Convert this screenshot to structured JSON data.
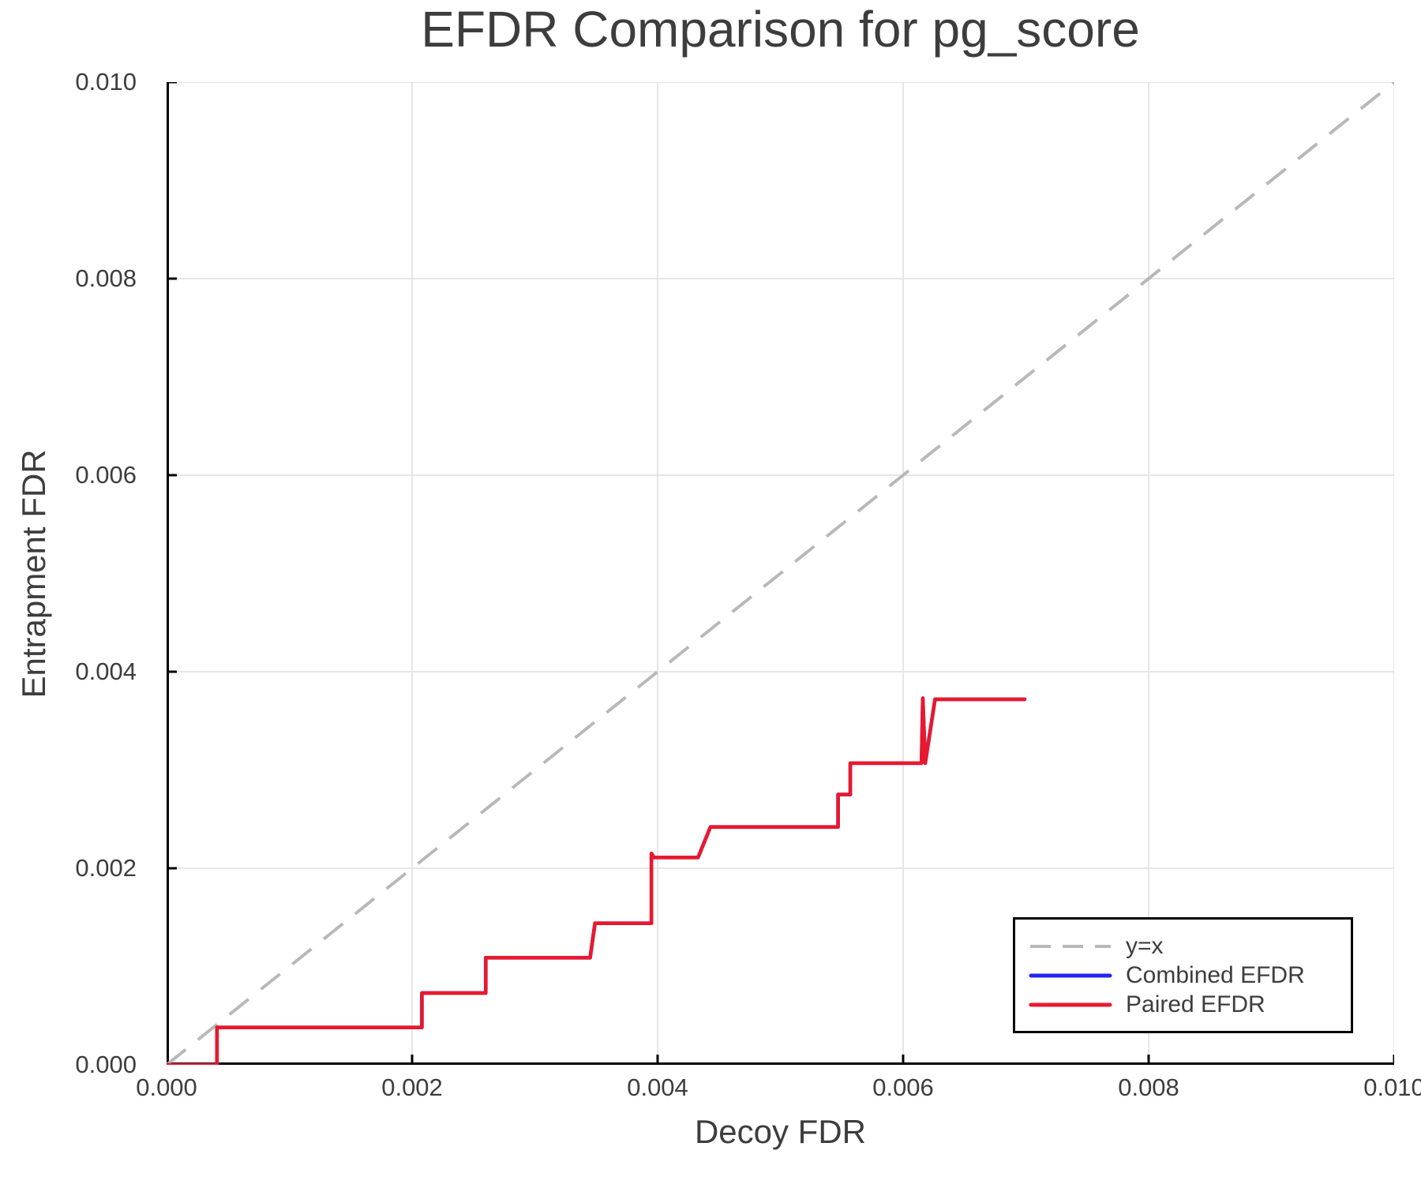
{
  "title": "EFDR Comparison for pg_score",
  "axes": {
    "xlabel": "Decoy FDR",
    "ylabel": "Entrapment FDR"
  },
  "colors": {
    "identity_line": "#b8b8b8",
    "combined_efdr": "#2424f0",
    "paired_efdr": "#e8192e",
    "gridline": "#e6e6e6",
    "axis_spine": "#000000",
    "text": "#3d3d3d",
    "legend_border": "#000000",
    "background": "#ffffff"
  },
  "legend": {
    "position": "lower right",
    "items": [
      {
        "label": "y=x"
      },
      {
        "label": "Combined EFDR"
      },
      {
        "label": "Paired EFDR"
      }
    ]
  },
  "chart_data": {
    "type": "line",
    "title": "EFDR Comparison for pg_score",
    "xlabel": "Decoy FDR",
    "ylabel": "Entrapment FDR",
    "xlim": [
      0.0,
      0.01
    ],
    "ylim": [
      0.0,
      0.01
    ],
    "grid": true,
    "legend_position": "lower right",
    "x_ticks": [
      0.0,
      0.002,
      0.004,
      0.006,
      0.008,
      0.01
    ],
    "x_tick_labels": [
      "0.000",
      "0.002",
      "0.004",
      "0.006",
      "0.008",
      "0.010"
    ],
    "y_ticks": [
      0.0,
      0.002,
      0.004,
      0.006,
      0.008,
      0.01
    ],
    "y_tick_labels": [
      "0.000",
      "0.002",
      "0.004",
      "0.006",
      "0.008",
      "0.010"
    ],
    "series": [
      {
        "name": "y=x",
        "style": "dashed",
        "color": "#b8b8b8",
        "width": 4,
        "points": [
          [
            0.0,
            0.0
          ],
          [
            0.01,
            0.01
          ]
        ]
      },
      {
        "name": "Combined EFDR",
        "style": "solid",
        "color": "#2424f0",
        "width": 4.6,
        "points": [
          [
            0.0,
            0.0
          ],
          [
            0.00041,
            0.0
          ],
          [
            0.00041,
            0.00038
          ],
          [
            0.00208,
            0.00038
          ],
          [
            0.00208,
            0.00073
          ],
          [
            0.0026,
            0.00073
          ],
          [
            0.0026,
            0.00109
          ],
          [
            0.00345,
            0.00109
          ],
          [
            0.00349,
            0.00144
          ],
          [
            0.00395,
            0.00144
          ],
          [
            0.00395,
            0.00215
          ],
          [
            0.00397,
            0.00211
          ],
          [
            0.00433,
            0.00211
          ],
          [
            0.00443,
            0.00242
          ],
          [
            0.00547,
            0.00242
          ],
          [
            0.00547,
            0.00275
          ],
          [
            0.00557,
            0.00275
          ],
          [
            0.00557,
            0.00307
          ],
          [
            0.00615,
            0.00307
          ],
          [
            0.00616,
            0.00373
          ],
          [
            0.00618,
            0.00307
          ],
          [
            0.00626,
            0.00372
          ],
          [
            0.00699,
            0.00372
          ]
        ]
      },
      {
        "name": "Paired EFDR",
        "style": "solid",
        "color": "#e8192e",
        "width": 4.6,
        "points": [
          [
            0.0,
            0.0
          ],
          [
            0.00041,
            0.0
          ],
          [
            0.00041,
            0.00038
          ],
          [
            0.00208,
            0.00038
          ],
          [
            0.00208,
            0.00073
          ],
          [
            0.0026,
            0.00073
          ],
          [
            0.0026,
            0.00109
          ],
          [
            0.00345,
            0.00109
          ],
          [
            0.00349,
            0.00144
          ],
          [
            0.00395,
            0.00144
          ],
          [
            0.00395,
            0.00215
          ],
          [
            0.00397,
            0.00211
          ],
          [
            0.00433,
            0.00211
          ],
          [
            0.00443,
            0.00242
          ],
          [
            0.00547,
            0.00242
          ],
          [
            0.00547,
            0.00275
          ],
          [
            0.00557,
            0.00275
          ],
          [
            0.00557,
            0.00307
          ],
          [
            0.00615,
            0.00307
          ],
          [
            0.00616,
            0.00373
          ],
          [
            0.00618,
            0.00307
          ],
          [
            0.00626,
            0.00372
          ],
          [
            0.00699,
            0.00372
          ]
        ]
      }
    ]
  }
}
